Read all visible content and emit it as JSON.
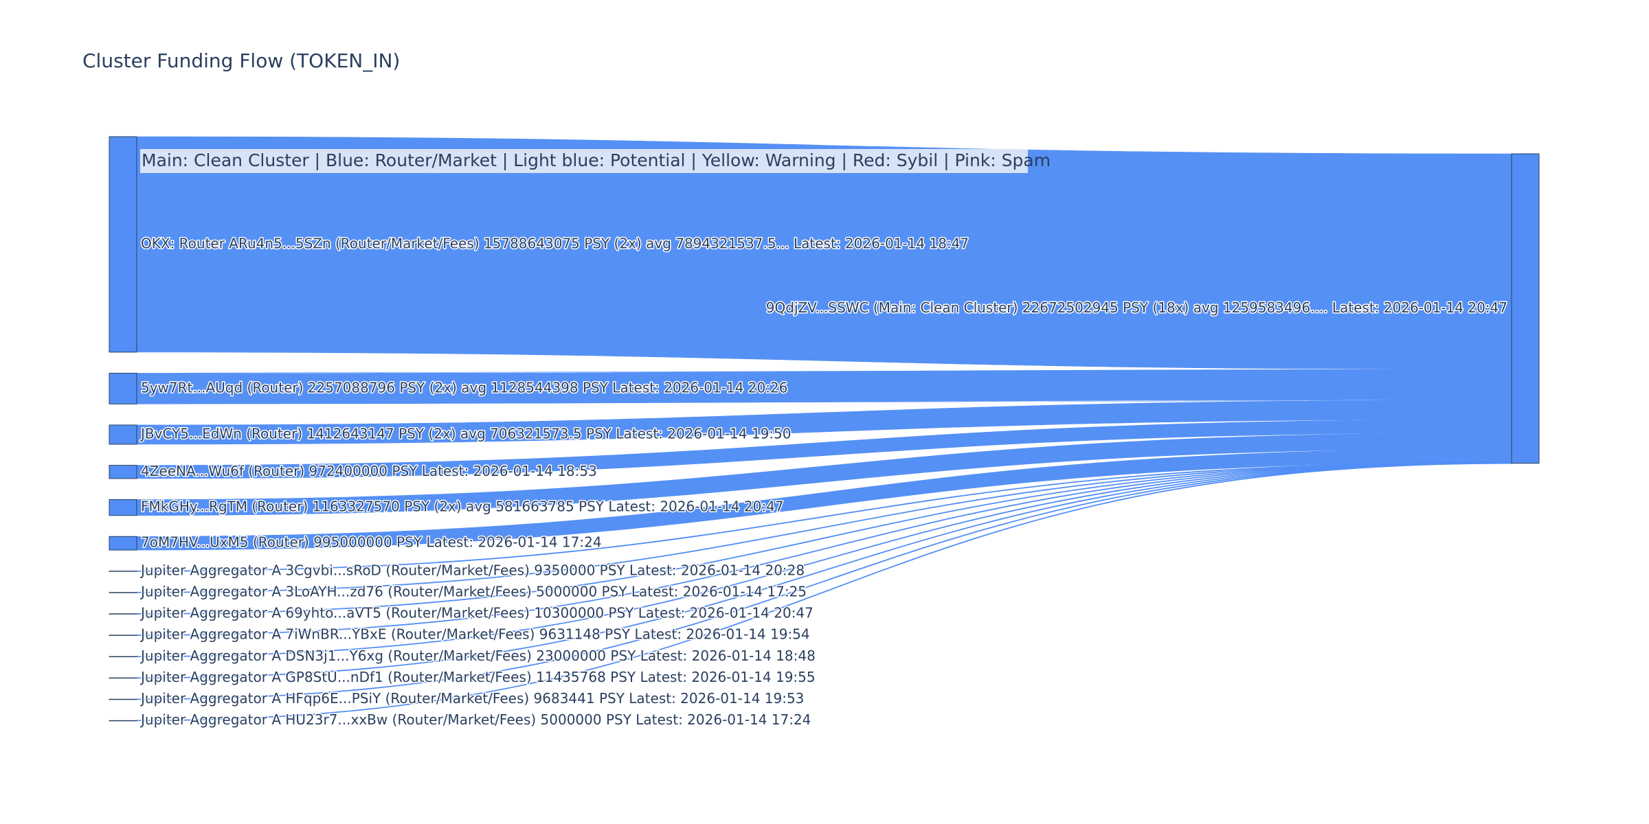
{
  "chart_data": {
    "type": "sankey",
    "title": "Cluster Funding Flow (TOKEN_IN)",
    "annotation": "Main: Clean Cluster  |  Blue: Router/Market | Light blue: Potential | Yellow: Warning | Red: Sybil | Pink: Spam",
    "color": "#528ef5",
    "sources": [
      {
        "label": "OKX: Router ARu4n5...5SZn (Router/Market/Fees) 15788643075 PSY (2x) avg 7894321537.5... Latest: 2026-01-14 18:47",
        "value": 15788643075
      },
      {
        "label": "5yw7Rt...AUqd (Router) 2257088796 PSY (2x) avg 1128544398 PSY Latest: 2026-01-14 20:26",
        "value": 2257088796
      },
      {
        "label": "JBvCY5...EdWn (Router) 1412643147 PSY (2x) avg 706321573.5 PSY Latest: 2026-01-14 19:50",
        "value": 1412643147
      },
      {
        "label": "4ZeeNA...Wu6f (Router) 972400000 PSY Latest: 2026-01-14 18:53",
        "value": 972400000
      },
      {
        "label": "FMkGHy...RgTM (Router) 1163327570 PSY (2x) avg 581663785 PSY Latest: 2026-01-14 20:47",
        "value": 1163327570
      },
      {
        "label": "7oM7HV...UxM5 (Router) 995000000 PSY Latest: 2026-01-14 17:24",
        "value": 995000000
      },
      {
        "label": "Jupiter Aggregator A 3Cgvbi...sRoD (Router/Market/Fees) 9350000 PSY Latest: 2026-01-14 20:28",
        "value": 9350000
      },
      {
        "label": "Jupiter Aggregator A 3LoAYH...zd76 (Router/Market/Fees) 5000000 PSY Latest: 2026-01-14 17:25",
        "value": 5000000
      },
      {
        "label": "Jupiter Aggregator A 69yhto...aVT5 (Router/Market/Fees) 10300000 PSY Latest: 2026-01-14 20:47",
        "value": 10300000
      },
      {
        "label": "Jupiter Aggregator A 7iWnBR...YBxE (Router/Market/Fees) 9631148 PSY Latest: 2026-01-14 19:54",
        "value": 9631148
      },
      {
        "label": "Jupiter Aggregator A DSN3j1...Y6xg (Router/Market/Fees) 23000000 PSY Latest: 2026-01-14 18:48",
        "value": 23000000
      },
      {
        "label": "Jupiter Aggregator A GP8StU...nDf1 (Router/Market/Fees) 11435768 PSY Latest: 2026-01-14 19:55",
        "value": 11435768
      },
      {
        "label": "Jupiter Aggregator A HFqp6E...PSiY (Router/Market/Fees) 9683441 PSY Latest: 2026-01-14 19:53",
        "value": 9683441
      },
      {
        "label": "Jupiter Aggregator A HU23r7...xxBw (Router/Market/Fees) 5000000 PSY Latest: 2026-01-14 17:24",
        "value": 5000000
      }
    ],
    "target": {
      "label": "9QdjZV...SSWC (Main: Clean Cluster) 22672502945 PSY (18x) avg 1259583496.... Latest: 2026-01-14 20:47"
    }
  }
}
